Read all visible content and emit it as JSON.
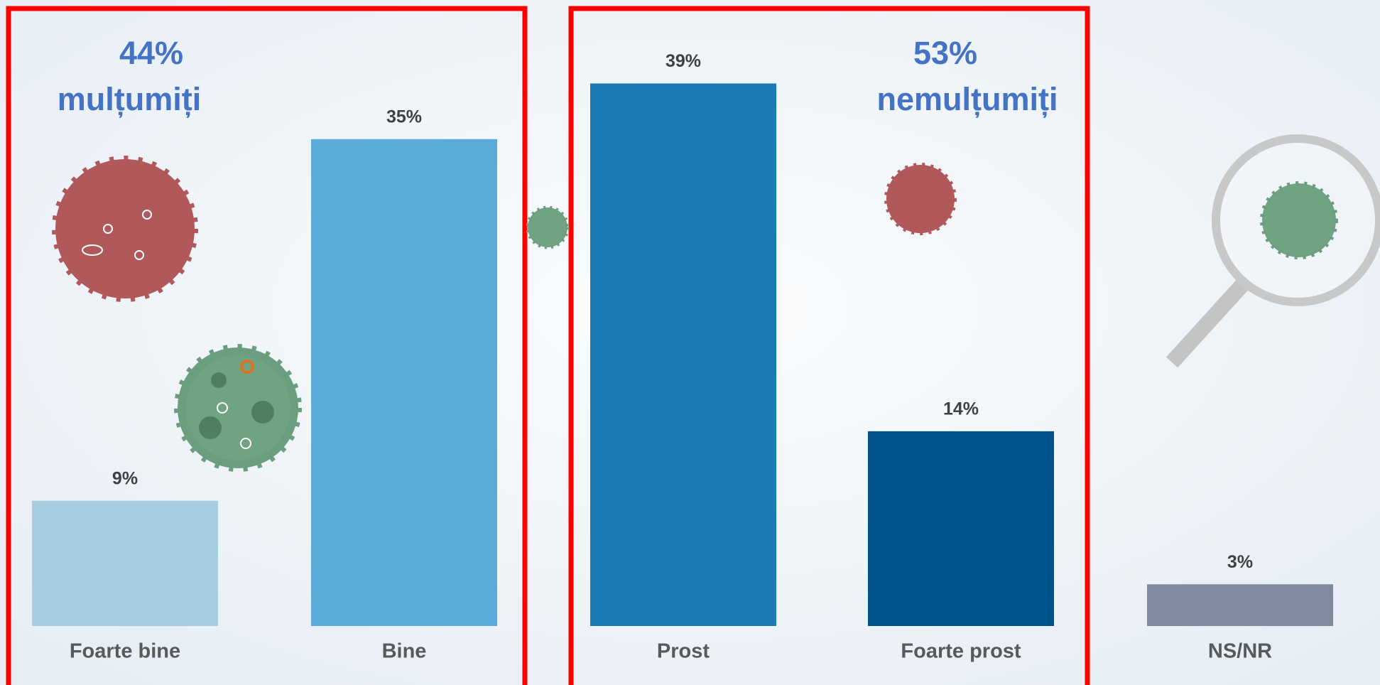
{
  "chart_data": {
    "type": "bar",
    "categories": [
      "Foarte bine",
      "Bine",
      "Prost",
      "Foarte prost",
      "NS/NR"
    ],
    "values": [
      9,
      35,
      39,
      14,
      3
    ],
    "value_labels": [
      "9%",
      "35%",
      "39%",
      "14%",
      "3%"
    ],
    "colors": [
      "#a6cde2",
      "#5aabd9",
      "#1a7cb3",
      "#00538a",
      "#7f8a9e"
    ],
    "ylim": [
      0,
      45
    ],
    "grid": false,
    "annotations": [
      "44%",
      "mulțumiți",
      "53%",
      "nemulțumiți"
    ]
  }
}
